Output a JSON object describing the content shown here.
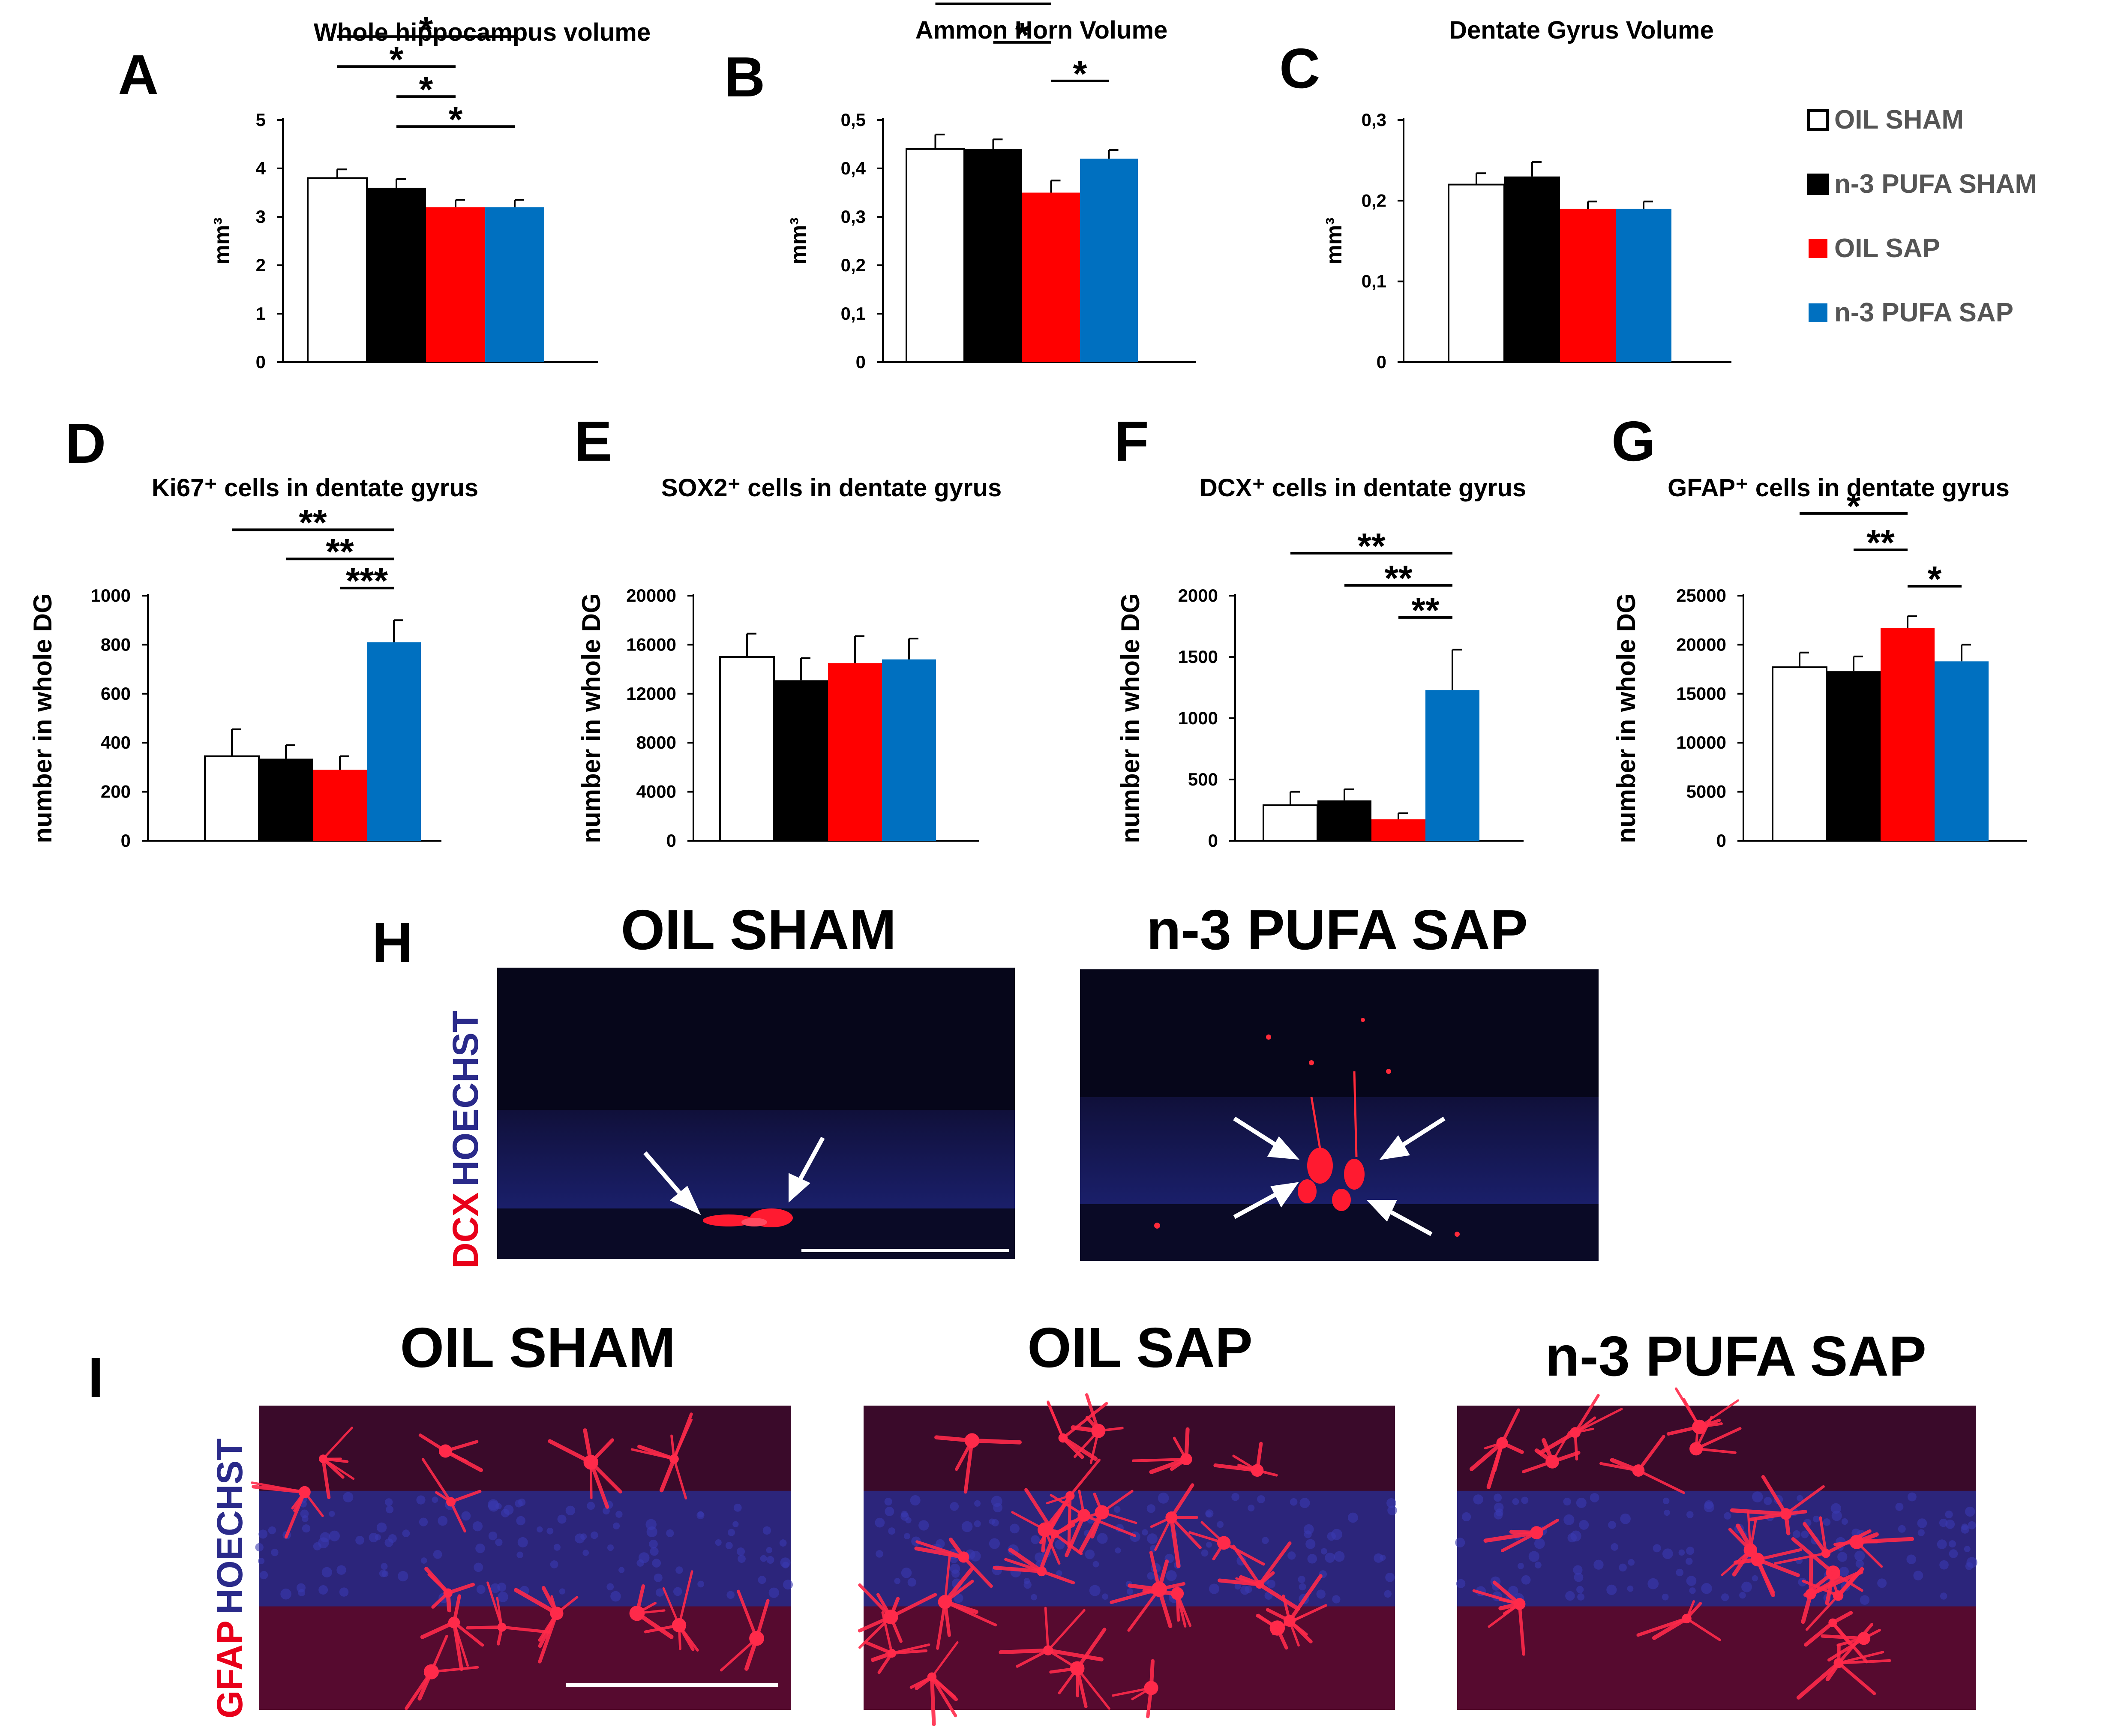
{
  "colors": {
    "oil_sham": "#ffffff",
    "n3_pufa_sham": "#000000",
    "oil_sap": "#ff0000",
    "n3_pufa_sap": "#0070c0",
    "red_stain": "#e8001a",
    "blue_stain": "#2a2a8a"
  },
  "legend": {
    "items": [
      {
        "label": "OIL SHAM",
        "color": "#ffffff"
      },
      {
        "label": "n-3 PUFA SHAM",
        "color": "#000000"
      },
      {
        "label": "OIL SAP",
        "color": "#ff0000"
      },
      {
        "label": "n-3 PUFA SAP",
        "color": "#0070c0"
      }
    ]
  },
  "chart_data": [
    {
      "panel": "A",
      "type": "bar",
      "title": "Whole hippocampus volume",
      "ylabel": "mm³",
      "xlabel": "",
      "ylim": [
        0,
        5
      ],
      "yticks": [
        0,
        1,
        2,
        3,
        4,
        5
      ],
      "ytick_labels": [
        "0",
        "1",
        "2",
        "3",
        "4",
        "5"
      ],
      "categories": [
        "OIL SHAM",
        "n-3 PUFA SHAM",
        "OIL SAP",
        "n-3 PUFA SAP"
      ],
      "values": [
        3.8,
        3.6,
        3.2,
        3.2
      ],
      "errors": [
        0.18,
        0.18,
        0.15,
        0.15
      ],
      "significance": [
        {
          "from": 0,
          "to": 3,
          "label": "*"
        },
        {
          "from": 0,
          "to": 2,
          "label": "*"
        },
        {
          "from": 1,
          "to": 2,
          "label": "*"
        },
        {
          "from": 1,
          "to": 3,
          "label": "*"
        }
      ]
    },
    {
      "panel": "B",
      "type": "bar",
      "title": "Ammon  Horn Volume",
      "ylabel": "mm³",
      "xlabel": "",
      "ylim": [
        0,
        0.5
      ],
      "yticks": [
        0,
        0.1,
        0.2,
        0.3,
        0.4,
        0.5
      ],
      "ytick_labels": [
        "0",
        "0,1",
        "0,2",
        "0,3",
        "0,4",
        "0,5"
      ],
      "categories": [
        "OIL SHAM",
        "n-3 PUFA SHAM",
        "OIL SAP",
        "n-3 PUFA SAP"
      ],
      "values": [
        0.44,
        0.44,
        0.35,
        0.42
      ],
      "errors": [
        0.03,
        0.02,
        0.025,
        0.018
      ],
      "significance": [
        {
          "from": 0,
          "to": 2,
          "label": "*"
        },
        {
          "from": 1,
          "to": 2,
          "label": "*"
        },
        {
          "from": 2,
          "to": 3,
          "label": "*"
        }
      ]
    },
    {
      "panel": "C",
      "type": "bar",
      "title": "Dentate Gyrus Volume",
      "ylabel": "mm³",
      "xlabel": "",
      "ylim": [
        0,
        0.3
      ],
      "yticks": [
        0,
        0.1,
        0.2,
        0.3
      ],
      "ytick_labels": [
        "0",
        "0,1",
        "0,2",
        "0,3"
      ],
      "categories": [
        "OIL SHAM",
        "n-3 PUFA SHAM",
        "OIL SAP",
        "n-3 PUFA SAP"
      ],
      "values": [
        0.22,
        0.23,
        0.19,
        0.19
      ],
      "errors": [
        0.014,
        0.018,
        0.009,
        0.009
      ],
      "significance": []
    },
    {
      "panel": "D",
      "type": "bar",
      "title": "Ki67⁺ cells in dentate gyrus",
      "ylabel": "number in whole DG",
      "xlabel": "",
      "ylim": [
        0,
        1000
      ],
      "yticks": [
        0,
        200,
        400,
        600,
        800,
        1000
      ],
      "ytick_labels": [
        "0",
        "200",
        "400",
        "600",
        "800",
        "1000"
      ],
      "categories": [
        "OIL SHAM",
        "n-3 PUFA SHAM",
        "OIL SAP",
        "n-3 PUFA SAP"
      ],
      "values": [
        345,
        335,
        290,
        810
      ],
      "errors": [
        110,
        55,
        55,
        90
      ],
      "significance": [
        {
          "from": 0,
          "to": 3,
          "label": "**"
        },
        {
          "from": 1,
          "to": 3,
          "label": "**"
        },
        {
          "from": 2,
          "to": 3,
          "label": "***"
        }
      ]
    },
    {
      "panel": "E",
      "type": "bar",
      "title": "SOX2⁺ cells in dentate gyrus",
      "ylabel": "number in whole DG",
      "xlabel": "",
      "ylim": [
        0,
        20000
      ],
      "yticks": [
        0,
        4000,
        8000,
        12000,
        16000,
        20000
      ],
      "ytick_labels": [
        "0",
        "4000",
        "8000",
        "12000",
        "16000",
        "20000"
      ],
      "categories": [
        "OIL SHAM",
        "n-3 PUFA SHAM",
        "OIL SAP",
        "n-3 PUFA SAP"
      ],
      "values": [
        15000,
        13100,
        14500,
        14800
      ],
      "errors": [
        1900,
        1800,
        2200,
        1700
      ],
      "significance": []
    },
    {
      "panel": "F",
      "type": "bar",
      "title": "DCX⁺ cells in dentate gyrus",
      "ylabel": "number in whole DG",
      "xlabel": "",
      "ylim": [
        0,
        2000
      ],
      "yticks": [
        0,
        500,
        1000,
        1500,
        2000
      ],
      "ytick_labels": [
        "0",
        "500",
        "1000",
        "1500",
        "2000"
      ],
      "categories": [
        "OIL SHAM",
        "n-3 PUFA SHAM",
        "OIL SAP",
        "n-3 PUFA SAP"
      ],
      "values": [
        290,
        330,
        175,
        1230
      ],
      "errors": [
        110,
        90,
        50,
        330
      ],
      "significance": [
        {
          "from": 0,
          "to": 3,
          "label": "**"
        },
        {
          "from": 1,
          "to": 3,
          "label": "**"
        },
        {
          "from": 2,
          "to": 3,
          "label": "**"
        }
      ]
    },
    {
      "panel": "G",
      "type": "bar",
      "title": "GFAP⁺ cells in dentate gyrus",
      "ylabel": "number in whole DG",
      "xlabel": "",
      "ylim": [
        0,
        25000
      ],
      "yticks": [
        0,
        5000,
        10000,
        15000,
        20000,
        25000
      ],
      "ytick_labels": [
        "0",
        "5000",
        "10000",
        "15000",
        "20000",
        "25000"
      ],
      "categories": [
        "OIL SHAM",
        "n-3 PUFA SHAM",
        "OIL SAP",
        "n-3 PUFA SAP"
      ],
      "values": [
        17700,
        17300,
        21700,
        18300
      ],
      "errors": [
        1500,
        1500,
        1200,
        1700
      ],
      "significance": [
        {
          "from": 0,
          "to": 2,
          "label": "*"
        },
        {
          "from": 1,
          "to": 2,
          "label": "**"
        },
        {
          "from": 2,
          "to": 3,
          "label": "*"
        }
      ]
    }
  ],
  "panel_h": {
    "letter": "H",
    "stain_red": "DCX",
    "stain_blue": "HOECHST",
    "images": [
      {
        "title": "OIL SHAM"
      },
      {
        "title": "n-3 PUFA SAP"
      }
    ]
  },
  "panel_i": {
    "letter": "I",
    "stain_red": "GFAP",
    "stain_blue": "HOECHST",
    "images": [
      {
        "title": "OIL SHAM"
      },
      {
        "title": "OIL SAP"
      },
      {
        "title": "n-3 PUFA SAP"
      }
    ]
  }
}
